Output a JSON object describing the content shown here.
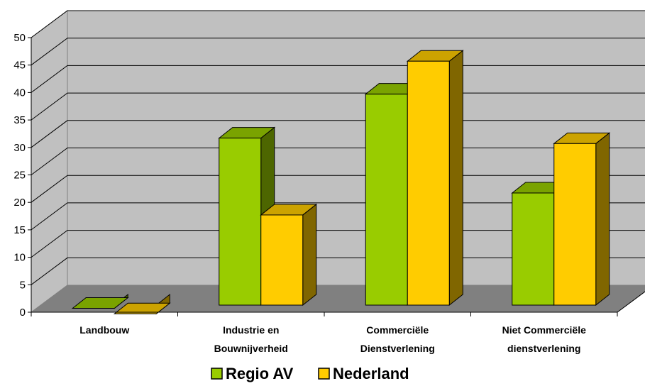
{
  "chart_data": {
    "type": "bar",
    "categories": [
      [
        "Landbouw"
      ],
      [
        "Industrie en",
        "Bouwnijverheid"
      ],
      [
        "Commerciële",
        "Dienstverlening"
      ],
      [
        "Niet Commerciële",
        "dienstverlening"
      ]
    ],
    "series": [
      {
        "name": "Regio AV",
        "values": [
          2,
          33,
          41,
          23
        ],
        "color": "#99cc00",
        "side_color": "#4d6600",
        "top_color": "#7aa300"
      },
      {
        "name": "Nederland",
        "values": [
          1,
          19,
          47,
          32
        ],
        "color": "#ffcc00",
        "side_color": "#806600",
        "top_color": "#cca300"
      }
    ],
    "ylim": [
      0,
      50
    ],
    "yticks": [
      0,
      5,
      10,
      15,
      20,
      25,
      30,
      35,
      40,
      45,
      50
    ],
    "grid": true,
    "legend_position": "bottom",
    "wall_color": "#c0c0c0",
    "floor_color": "#808080"
  }
}
